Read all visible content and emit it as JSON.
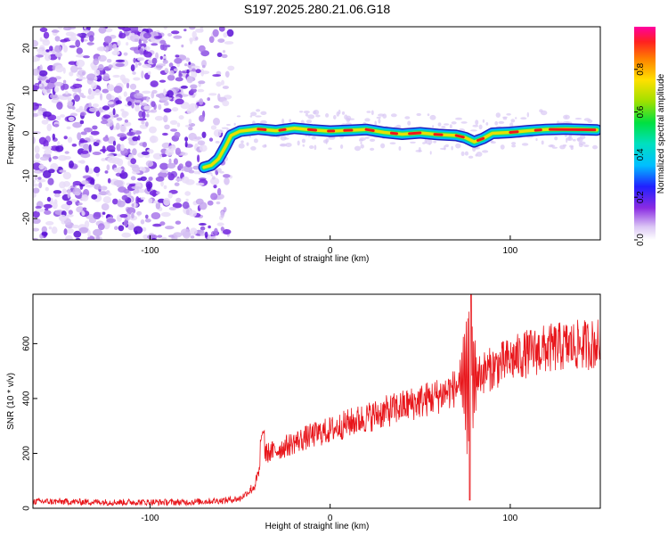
{
  "title": "S197.2025.280.21.06.G18",
  "chart_data": [
    {
      "type": "heatmap",
      "name": "spectrogram",
      "xlabel": "Height of straight line (km)",
      "ylabel": "Frequency (Hz)",
      "xlim": [
        -165,
        150
      ],
      "ylim": [
        -25,
        25
      ],
      "xticks": [
        -100,
        0,
        100
      ],
      "yticks": [
        -20,
        -10,
        0,
        10,
        20
      ],
      "noise_region_x": [
        -165,
        -55
      ],
      "ridge": {
        "x": [
          -70,
          -66,
          -62,
          -58,
          -55,
          -50,
          -40,
          -30,
          -20,
          -10,
          0,
          10,
          20,
          30,
          40,
          50,
          60,
          70,
          75,
          80,
          85,
          90,
          100,
          110,
          120,
          130,
          140,
          148
        ],
        "freq_hz": [
          -8,
          -7.5,
          -6,
          -3,
          -0.5,
          0.5,
          1,
          0.6,
          1.2,
          0.8,
          0.5,
          0.7,
          0.9,
          0.2,
          -0.2,
          0.1,
          -0.3,
          -0.5,
          -1,
          -2,
          -1.2,
          0,
          0.2,
          0.6,
          0.9,
          1.0,
          0.9,
          0.8
        ]
      }
    },
    {
      "type": "line",
      "name": "snr",
      "xlabel": "Height of straight line (km)",
      "ylabel": "SNR (10 * v/v)",
      "xlim": [
        -165,
        150
      ],
      "ylim": [
        0,
        780
      ],
      "xticks": [
        -100,
        0,
        100
      ],
      "yticks": [
        0,
        200,
        400,
        600
      ],
      "color": "#e8161b",
      "trend": {
        "x": [
          -165,
          -120,
          -80,
          -60,
          -50,
          -42,
          -38,
          -36,
          -30,
          -20,
          -10,
          0,
          10,
          20,
          30,
          40,
          50,
          60,
          70,
          75,
          80,
          90,
          100,
          110,
          120,
          130,
          140,
          150
        ],
        "y": [
          25,
          22,
          22,
          28,
          35,
          80,
          160,
          200,
          210,
          240,
          265,
          285,
          310,
          330,
          350,
          370,
          390,
          410,
          440,
          470,
          480,
          510,
          540,
          565,
          580,
          590,
          595,
          600
        ]
      }
    }
  ],
  "colorbar": {
    "label": "Normalized spectral amplitude",
    "range": [
      0,
      1
    ],
    "ticks": [
      "0.0",
      "0.2",
      "0.4",
      "0.6",
      "0.8"
    ],
    "tick_values": [
      0,
      0.2,
      0.4,
      0.6,
      0.8
    ]
  }
}
